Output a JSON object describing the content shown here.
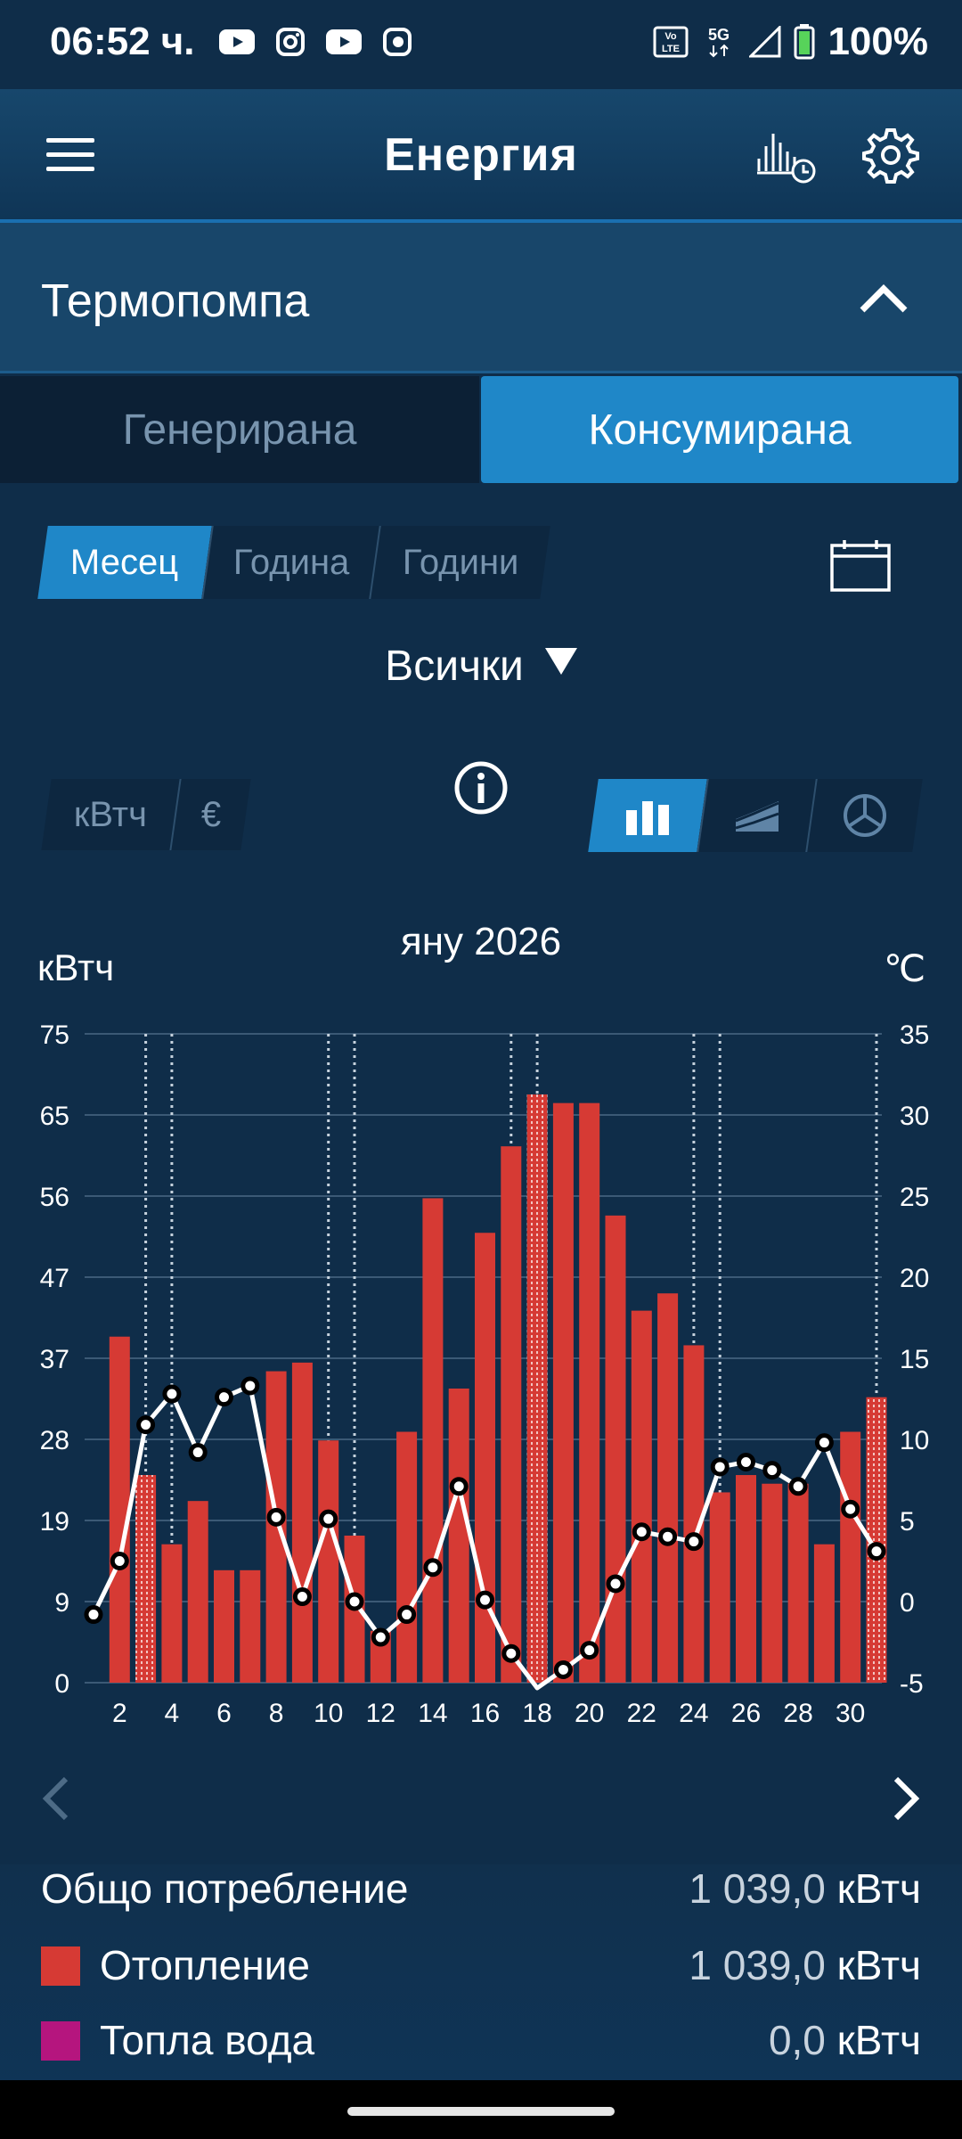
{
  "status_bar": {
    "time": "06:52 ч.",
    "icons": [
      "youtube-icon",
      "instagram-icon",
      "youtube-icon",
      "app-icon"
    ],
    "right_icons": [
      "volte-icon",
      "5g-icon",
      "signal-icon",
      "battery-icon"
    ],
    "battery": "100%",
    "network": "5G"
  },
  "app_bar": {
    "title": "Енергия",
    "icons": [
      "menu-icon",
      "history-icon",
      "gear-icon"
    ]
  },
  "section": {
    "title": "Термопомпа",
    "expanded": true
  },
  "mode_tabs": {
    "generated": "Генерирана",
    "consumed": "Консумирана",
    "active": "consumed"
  },
  "period_tabs": {
    "month": "Месец",
    "year": "Година",
    "hours": "Години",
    "active": "month"
  },
  "filter": {
    "selected": "Всички"
  },
  "unit_tabs": {
    "kwh": "кВтч",
    "eur": "€",
    "active": "kwh"
  },
  "chart_type_tabs": {
    "icons": [
      "bar-chart-icon",
      "area-chart-icon",
      "pie-chart-icon"
    ],
    "active": "bar"
  },
  "colors": {
    "heating": "#d63a34",
    "hot_water": "#b5157e",
    "accent": "#1f87c8",
    "background": "#0f2d49"
  },
  "chart_data": {
    "type": "bar",
    "title": "яну 2026",
    "ylabel": "кВтч",
    "y2label": "℃",
    "ylim": [
      0,
      75
    ],
    "y2lim": [
      -5,
      35
    ],
    "yticks": [
      "0",
      "9",
      "19",
      "28",
      "37",
      "47",
      "56",
      "65",
      "75"
    ],
    "y2ticks": [
      "-5",
      "0",
      "5",
      "10",
      "15",
      "20",
      "25",
      "30",
      "35"
    ],
    "xticks": [
      "2",
      "4",
      "6",
      "8",
      "10",
      "12",
      "14",
      "16",
      "18",
      "20",
      "22",
      "24",
      "26",
      "28",
      "30"
    ],
    "x": [
      1,
      2,
      3,
      4,
      5,
      6,
      7,
      8,
      9,
      10,
      11,
      12,
      13,
      14,
      15,
      16,
      17,
      18,
      19,
      20,
      21,
      22,
      23,
      24,
      25,
      26,
      27,
      28,
      29,
      30,
      31
    ],
    "series": [
      {
        "type": "bar",
        "axis": "left",
        "color": "#d63a34",
        "values": [
          0,
          40,
          24,
          16,
          21,
          13,
          13,
          36,
          37,
          28,
          17,
          6,
          29,
          56,
          34,
          52,
          62,
          68,
          67,
          67,
          54,
          43,
          45,
          39,
          22,
          24,
          23,
          23,
          16,
          29,
          33
        ],
        "striped_days": [
          3,
          18,
          31
        ]
      },
      {
        "type": "line",
        "axis": "right",
        "color": "#ffffff",
        "values": [
          -0.8,
          2.5,
          10.9,
          12.8,
          9.2,
          12.6,
          13.3,
          5.2,
          0.3,
          5.1,
          0,
          -2.2,
          -0.8,
          2.1,
          7.1,
          0.1,
          -3.2,
          -6.5,
          -4.2,
          -3.0,
          1.1,
          4.3,
          4.0,
          3.7,
          8.3,
          8.6,
          8.1,
          7.1,
          9.8,
          5.7,
          3.1
        ]
      }
    ],
    "markers_dotted_days": [
      3,
      4,
      10,
      11,
      17,
      18,
      24,
      25,
      31
    ],
    "grid": true
  },
  "navigation": {
    "prev_enabled": false,
    "next_enabled": true
  },
  "summary": {
    "total_label": "Общо потребление",
    "total_value": "1 039,0",
    "total_unit": "кВтч",
    "rows": [
      {
        "label": "Отопление",
        "value": "1 039,0",
        "unit": "кВтч"
      },
      {
        "label": "Топла вода",
        "value": "0,0",
        "unit": "кВтч"
      }
    ]
  }
}
